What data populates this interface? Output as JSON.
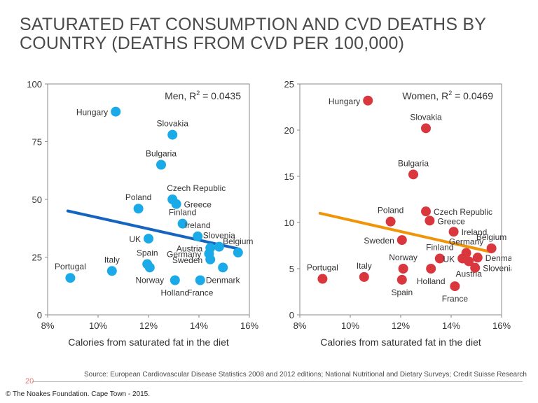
{
  "title": "SATURATED FAT CONSUMPTION AND CVD DEATHS BY COUNTRY (DEATHS FROM CVD PER 100,000)",
  "source": "Source: European Cardiovascular Disease Statistics 2008 and 2012 editions; National Nutritional and Dietary Surveys; Credit Suisse Research",
  "page_number": "20",
  "copyright": "© The Noakes Foundation. Cape Town - 2015.",
  "colors": {
    "men": "#1aaae8",
    "men_trend": "#1565c0",
    "women": "#d9363e",
    "women_trend": "#f0940a"
  },
  "chart_data": [
    {
      "type": "scatter",
      "legend": "Men, R",
      "legend_sup": "2",
      "legend_value": " = 0.0435",
      "xlabel": "Calories from saturated fat in the diet",
      "ylabel": "",
      "xlim": [
        8,
        16
      ],
      "ylim": [
        0,
        100
      ],
      "xticks": [
        "8%",
        "10%",
        "12%",
        "14%",
        "16%"
      ],
      "yticks": [
        "0",
        "25",
        "50",
        "75",
        "100"
      ],
      "trend": {
        "x": [
          8.8,
          15.6
        ],
        "y": [
          45,
          28.5
        ]
      },
      "points": [
        {
          "label": "Hungary",
          "x": 10.7,
          "y": 88,
          "label_pos": "left"
        },
        {
          "label": "Slovakia",
          "x": 12.95,
          "y": 78,
          "label_pos": "above"
        },
        {
          "label": "Bulgaria",
          "x": 12.5,
          "y": 65,
          "label_pos": "above"
        },
        {
          "label": "Czech Republic",
          "x": 12.95,
          "y": 50,
          "label_pos": "above-right"
        },
        {
          "label": "Greece",
          "x": 13.1,
          "y": 48,
          "label_pos": "right"
        },
        {
          "label": "Poland",
          "x": 11.6,
          "y": 46,
          "label_pos": "above"
        },
        {
          "label": "Finland",
          "x": 13.35,
          "y": 39.5,
          "label_pos": "above"
        },
        {
          "label": "Ireland",
          "x": 13.95,
          "y": 34,
          "label_pos": "above"
        },
        {
          "label": "Slovenia",
          "x": 14.8,
          "y": 29.5,
          "label_pos": "above"
        },
        {
          "label": "Belgium",
          "x": 15.55,
          "y": 27,
          "label_pos": "above"
        },
        {
          "label": "UK",
          "x": 12.0,
          "y": 33,
          "label_pos": "left"
        },
        {
          "label": "Austria",
          "x": 14.45,
          "y": 29,
          "label_pos": "left"
        },
        {
          "label": "Germany",
          "x": 14.4,
          "y": 26.5,
          "label_pos": "left"
        },
        {
          "label": "Sweden",
          "x": 14.45,
          "y": 24,
          "label_pos": "left"
        },
        {
          "label": "Spain",
          "x": 11.95,
          "y": 22,
          "label_pos": "above"
        },
        {
          "label": "Norway",
          "x": 12.05,
          "y": 20.5,
          "label_pos": "below"
        },
        {
          "label": "Denmark",
          "x": 14.95,
          "y": 20.5,
          "label_pos": "below"
        },
        {
          "label": "Italy",
          "x": 10.55,
          "y": 19,
          "label_pos": "above"
        },
        {
          "label": "Portugal",
          "x": 8.9,
          "y": 16,
          "label_pos": "above"
        },
        {
          "label": "Holland",
          "x": 13.05,
          "y": 15,
          "label_pos": "below"
        },
        {
          "label": "France",
          "x": 14.05,
          "y": 15,
          "label_pos": "below"
        }
      ]
    },
    {
      "type": "scatter",
      "legend": "Women, R",
      "legend_sup": "2",
      "legend_value": " = 0.0469",
      "xlabel": "Calories from saturated fat in the diet",
      "ylabel": "",
      "xlim": [
        8,
        16
      ],
      "ylim": [
        0,
        25
      ],
      "xticks": [
        "8%",
        "10%",
        "12%",
        "14%",
        "16%"
      ],
      "yticks": [
        "0",
        "5",
        "10",
        "15",
        "20",
        "25"
      ],
      "trend": {
        "x": [
          8.8,
          15.6
        ],
        "y": [
          11,
          6.8
        ]
      },
      "points": [
        {
          "label": "Hungary",
          "x": 10.7,
          "y": 23.2,
          "label_pos": "left"
        },
        {
          "label": "Slovakia",
          "x": 13.0,
          "y": 20.2,
          "label_pos": "above"
        },
        {
          "label": "Bulgaria",
          "x": 12.5,
          "y": 15.2,
          "label_pos": "above"
        },
        {
          "label": "Czech Republic",
          "x": 13.0,
          "y": 11.2,
          "label_pos": "right"
        },
        {
          "label": "Greece",
          "x": 13.15,
          "y": 10.2,
          "label_pos": "right"
        },
        {
          "label": "Poland",
          "x": 11.6,
          "y": 10.1,
          "label_pos": "above"
        },
        {
          "label": "Ireland",
          "x": 14.1,
          "y": 9.0,
          "label_pos": "right"
        },
        {
          "label": "Sweden",
          "x": 12.05,
          "y": 8.1,
          "label_pos": "left"
        },
        {
          "label": "Belgium",
          "x": 15.6,
          "y": 7.2,
          "label_pos": "above"
        },
        {
          "label": "Germany",
          "x": 14.6,
          "y": 6.7,
          "label_pos": "above"
        },
        {
          "label": "Finland",
          "x": 13.55,
          "y": 6.1,
          "label_pos": "above"
        },
        {
          "label": "UK",
          "x": 14.45,
          "y": 6.1,
          "label_pos": "left"
        },
        {
          "label": "Denmark",
          "x": 15.05,
          "y": 6.2,
          "label_pos": "right"
        },
        {
          "label": "Austria",
          "x": 14.7,
          "y": 5.8,
          "label_pos": "below"
        },
        {
          "label": "Slovenia",
          "x": 14.95,
          "y": 5.1,
          "label_pos": "right"
        },
        {
          "label": "Norway",
          "x": 12.1,
          "y": 5.0,
          "label_pos": "above"
        },
        {
          "label": "Holland",
          "x": 13.2,
          "y": 5.0,
          "label_pos": "below"
        },
        {
          "label": "Italy",
          "x": 10.55,
          "y": 4.1,
          "label_pos": "above"
        },
        {
          "label": "Portugal",
          "x": 8.9,
          "y": 3.9,
          "label_pos": "above"
        },
        {
          "label": "Spain",
          "x": 12.05,
          "y": 3.8,
          "label_pos": "below"
        },
        {
          "label": "France",
          "x": 14.15,
          "y": 3.1,
          "label_pos": "below"
        }
      ]
    }
  ]
}
